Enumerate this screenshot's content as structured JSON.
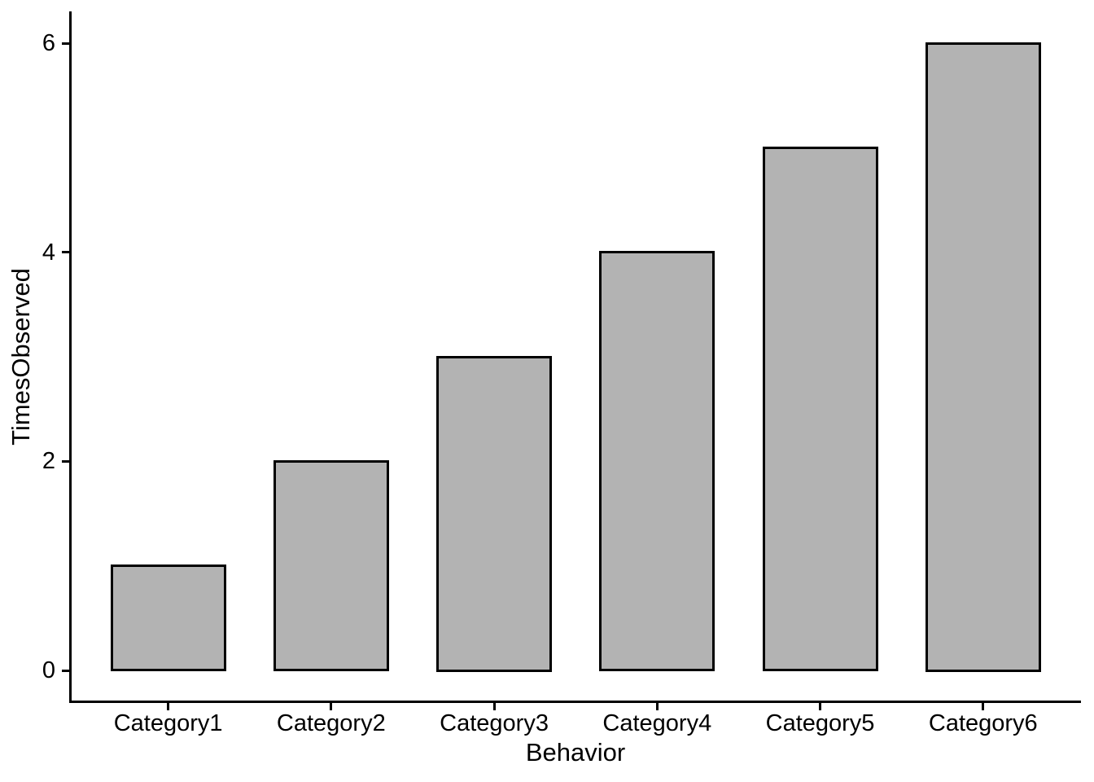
{
  "figure": {
    "background": "#ffffff"
  },
  "chart_data": {
    "type": "bar",
    "categories": [
      "Category1",
      "Category2",
      "Category3",
      "Category4",
      "Category5",
      "Category6"
    ],
    "values": [
      1,
      2,
      3,
      4,
      5,
      6
    ],
    "title": "",
    "xlabel": "Behavior",
    "ylabel": "TimesObserved",
    "ylim": [
      0,
      6
    ],
    "yticks": [
      0,
      2,
      4,
      6
    ],
    "grid": false,
    "legend": "none",
    "bar_fill": "#b3b3b3",
    "bar_stroke": "#000000",
    "axis_color": "#000000",
    "text_color": "#000000"
  }
}
